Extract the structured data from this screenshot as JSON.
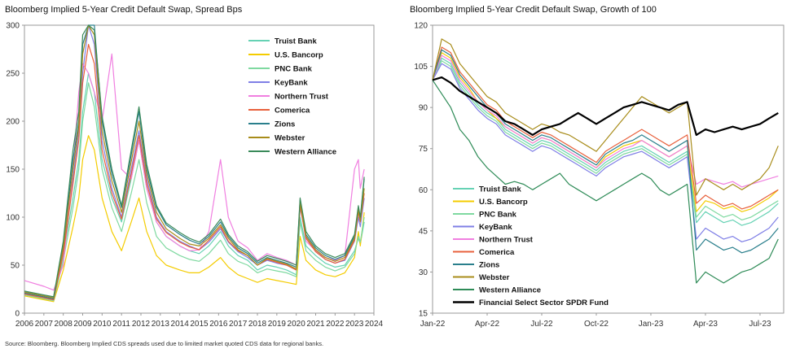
{
  "charts": {
    "left_title": "Bloomberg Implied 5-Year Credit Default Swap, Spread Bps",
    "right_title": "Bloomberg Implied 5-Year Credit Default Swap, Growth of 100"
  },
  "source": "Source: Bloomberg. Bloomberg Implied CDS spreads used due to limited market quoted CDS data for regional banks.",
  "chart_data": [
    {
      "type": "line",
      "title": "Bloomberg Implied 5-Year Credit Default Swap, Spread Bps",
      "xlabel": "",
      "ylabel": "",
      "xlim": [
        2006,
        2024
      ],
      "ylim": [
        0,
        300
      ],
      "x_ticks": [
        "2006",
        "2007",
        "2008",
        "2009",
        "2010",
        "2011",
        "2012",
        "2013",
        "2014",
        "2015",
        "2016",
        "2017",
        "2018",
        "2019",
        "2020",
        "2021",
        "2022",
        "2023",
        "2024"
      ],
      "y_ticks": [
        "0",
        "50",
        "100",
        "150",
        "200",
        "250",
        "300"
      ],
      "grid": false,
      "legend_position": "top-right",
      "x": [
        2006.0,
        2007.0,
        2007.5,
        2008.0,
        2008.5,
        2008.8,
        2009.0,
        2009.3,
        2009.6,
        2010.0,
        2010.5,
        2011.0,
        2011.5,
        2011.9,
        2012.3,
        2012.8,
        2013.3,
        2014.0,
        2014.5,
        2015.0,
        2015.5,
        2016.1,
        2016.5,
        2017.0,
        2017.5,
        2018.0,
        2018.5,
        2019.0,
        2019.5,
        2020.0,
        2020.2,
        2020.5,
        2021.0,
        2021.5,
        2022.0,
        2022.5,
        2023.0,
        2023.2,
        2023.3,
        2023.5
      ],
      "series": [
        {
          "name": "Truist Bank",
          "color": "#66d2b4",
          "values": [
            20,
            16,
            14,
            60,
            120,
            160,
            210,
            250,
            230,
            160,
            120,
            95,
            140,
            180,
            130,
            95,
            80,
            70,
            65,
            62,
            70,
            85,
            70,
            60,
            55,
            45,
            50,
            48,
            45,
            40,
            100,
            70,
            60,
            52,
            48,
            50,
            65,
            78,
            72,
            95
          ]
        },
        {
          "name": "U.S. Bancorp",
          "color": "#f4cc00",
          "values": [
            18,
            14,
            12,
            45,
            90,
            120,
            160,
            185,
            170,
            120,
            85,
            65,
            95,
            120,
            85,
            60,
            50,
            45,
            42,
            42,
            48,
            58,
            48,
            40,
            36,
            32,
            36,
            34,
            32,
            30,
            80,
            55,
            45,
            40,
            38,
            42,
            58,
            85,
            70,
            105
          ]
        },
        {
          "name": "PNC Bank",
          "color": "#7fd9a0",
          "values": [
            19,
            15,
            13,
            55,
            110,
            150,
            200,
            240,
            215,
            150,
            110,
            85,
            125,
            160,
            115,
            80,
            68,
            60,
            56,
            54,
            62,
            76,
            62,
            54,
            50,
            42,
            46,
            44,
            42,
            38,
            95,
            65,
            55,
            48,
            44,
            48,
            62,
            80,
            74,
            100
          ]
        },
        {
          "name": "KeyBank",
          "color": "#7f7fe6",
          "values": [
            20,
            16,
            14,
            65,
            140,
            190,
            250,
            300,
            280,
            180,
            130,
            100,
            150,
            190,
            140,
            100,
            85,
            75,
            70,
            66,
            74,
            88,
            74,
            64,
            58,
            50,
            55,
            52,
            50,
            45,
            110,
            80,
            65,
            56,
            52,
            55,
            75,
            100,
            90,
            120
          ]
        },
        {
          "name": "Northern Trust",
          "color": "#f07fe0",
          "values": [
            34,
            28,
            24,
            50,
            150,
            230,
            260,
            250,
            230,
            200,
            270,
            150,
            140,
            180,
            130,
            95,
            80,
            70,
            65,
            66,
            85,
            160,
            100,
            75,
            68,
            55,
            62,
            58,
            55,
            50,
            115,
            75,
            65,
            58,
            55,
            60,
            150,
            160,
            130,
            150
          ]
        },
        {
          "name": "Comerica",
          "color": "#e8603c",
          "values": [
            20,
            16,
            14,
            62,
            135,
            180,
            240,
            280,
            260,
            170,
            125,
            98,
            145,
            185,
            135,
            98,
            84,
            74,
            69,
            66,
            76,
            90,
            75,
            65,
            60,
            50,
            56,
            53,
            50,
            45,
            112,
            78,
            64,
            56,
            52,
            56,
            76,
            105,
            95,
            125
          ]
        },
        {
          "name": "Zions",
          "color": "#2a7f8c",
          "values": [
            21,
            17,
            15,
            70,
            160,
            200,
            280,
            310,
            300,
            200,
            145,
            110,
            165,
            210,
            150,
            110,
            92,
            82,
            76,
            72,
            80,
            95,
            80,
            68,
            62,
            52,
            58,
            55,
            52,
            48,
            118,
            82,
            68,
            60,
            56,
            60,
            80,
            110,
            98,
            140
          ]
        },
        {
          "name": "Webster",
          "color": "#a88c1a",
          "values": [
            22,
            18,
            16,
            68,
            150,
            195,
            270,
            305,
            290,
            190,
            138,
            105,
            158,
            200,
            145,
            105,
            88,
            78,
            72,
            70,
            78,
            92,
            78,
            66,
            60,
            50,
            57,
            54,
            51,
            46,
            115,
            80,
            66,
            58,
            54,
            58,
            78,
            108,
            96,
            130
          ]
        },
        {
          "name": "Western Alliance",
          "color": "#3a8a5a",
          "values": [
            23,
            19,
            17,
            75,
            170,
            210,
            290,
            300,
            295,
            205,
            150,
            112,
            170,
            215,
            155,
            112,
            94,
            84,
            78,
            74,
            82,
            98,
            82,
            70,
            64,
            54,
            60,
            57,
            54,
            50,
            120,
            85,
            70,
            62,
            58,
            62,
            82,
            112,
            100,
            142
          ]
        }
      ]
    },
    {
      "type": "line",
      "title": "Bloomberg Implied 5-Year Credit Default Swap, Growth of 100",
      "xlabel": "",
      "ylabel": "",
      "xlim": [
        0,
        19.3
      ],
      "ylim": [
        15,
        120
      ],
      "x_ticks": [
        "Jan-22",
        "Apr-22",
        "Jul-22",
        "Oct-22",
        "Jan-23",
        "Apr-23",
        "Jul-23"
      ],
      "y_ticks": [
        "15",
        "30",
        "45",
        "60",
        "75",
        "90",
        "105",
        "120"
      ],
      "grid": false,
      "legend_position": "bottom-left",
      "x": [
        0,
        0.5,
        1.0,
        1.5,
        2.0,
        2.5,
        3.0,
        3.5,
        4.0,
        4.5,
        5.0,
        5.5,
        6.0,
        6.5,
        7.0,
        7.5,
        8.0,
        8.5,
        9.0,
        9.5,
        10.0,
        10.5,
        11.0,
        11.5,
        12.0,
        12.5,
        13.0,
        13.5,
        14.0,
        14.5,
        15.0,
        15.5,
        16.0,
        16.5,
        17.0,
        17.5,
        18.0,
        18.5,
        19.0
      ],
      "series": [
        {
          "name": "Truist Bank",
          "color": "#66d2b4",
          "values": [
            100,
            108,
            106,
            99,
            95,
            91,
            88,
            86,
            82,
            80,
            78,
            76,
            78,
            77,
            75,
            73,
            71,
            69,
            67,
            70,
            72,
            74,
            75,
            76,
            74,
            72,
            70,
            72,
            74,
            48,
            52,
            50,
            48,
            49,
            47,
            48,
            50,
            52,
            55
          ]
        },
        {
          "name": "U.S. Bancorp",
          "color": "#f4cc00",
          "values": [
            100,
            110,
            108,
            101,
            97,
            92,
            89,
            86,
            83,
            81,
            79,
            77,
            79,
            78,
            76,
            74,
            72,
            70,
            68,
            72,
            74,
            76,
            77,
            78,
            76,
            74,
            72,
            74,
            76,
            52,
            56,
            55,
            53,
            54,
            52,
            53,
            55,
            57,
            60
          ]
        },
        {
          "name": "PNC Bank",
          "color": "#7fd9a0",
          "values": [
            100,
            107,
            105,
            98,
            94,
            90,
            87,
            85,
            81,
            79,
            77,
            75,
            77,
            76,
            74,
            72,
            70,
            68,
            66,
            69,
            71,
            73,
            74,
            75,
            73,
            71,
            69,
            71,
            73,
            50,
            54,
            52,
            50,
            51,
            49,
            50,
            52,
            54,
            56
          ]
        },
        {
          "name": "KeyBank",
          "color": "#7f7fe6",
          "values": [
            100,
            106,
            104,
            97,
            93,
            89,
            86,
            84,
            80,
            78,
            76,
            74,
            76,
            75,
            73,
            71,
            69,
            67,
            65,
            68,
            70,
            72,
            73,
            74,
            72,
            70,
            68,
            70,
            72,
            42,
            46,
            44,
            42,
            43,
            41,
            42,
            44,
            46,
            50
          ]
        },
        {
          "name": "Northern Trust",
          "color": "#f07fe0",
          "values": [
            100,
            109,
            107,
            100,
            96,
            92,
            89,
            87,
            83,
            81,
            79,
            77,
            79,
            78,
            76,
            74,
            72,
            70,
            68,
            71,
            73,
            75,
            76,
            78,
            76,
            74,
            72,
            74,
            76,
            62,
            64,
            63,
            62,
            63,
            61,
            62,
            63,
            64,
            65
          ]
        },
        {
          "name": "Comerica",
          "color": "#e8603c",
          "values": [
            100,
            112,
            110,
            103,
            99,
            95,
            91,
            89,
            85,
            83,
            81,
            79,
            81,
            80,
            78,
            76,
            74,
            72,
            70,
            74,
            76,
            78,
            80,
            82,
            80,
            78,
            76,
            78,
            80,
            55,
            58,
            56,
            54,
            55,
            53,
            54,
            56,
            58,
            60
          ]
        },
        {
          "name": "Zions",
          "color": "#2a7f8c",
          "values": [
            100,
            111,
            109,
            102,
            98,
            94,
            90,
            88,
            84,
            82,
            80,
            78,
            80,
            79,
            77,
            75,
            73,
            71,
            69,
            73,
            75,
            77,
            78,
            80,
            78,
            76,
            74,
            76,
            78,
            38,
            42,
            40,
            38,
            39,
            37,
            38,
            40,
            42,
            46
          ]
        },
        {
          "name": "Webster",
          "color": "#a88c1a",
          "values": [
            100,
            115,
            113,
            106,
            102,
            98,
            94,
            92,
            88,
            86,
            84,
            82,
            84,
            83,
            81,
            80,
            78,
            76,
            74,
            78,
            82,
            86,
            90,
            94,
            92,
            90,
            88,
            90,
            92,
            58,
            64,
            62,
            60,
            62,
            60,
            62,
            64,
            68,
            76
          ]
        },
        {
          "name": "Western Alliance",
          "color": "#2e8b57",
          "values": [
            100,
            95,
            90,
            82,
            78,
            72,
            68,
            65,
            62,
            63,
            62,
            60,
            62,
            64,
            66,
            62,
            60,
            58,
            56,
            58,
            60,
            62,
            64,
            66,
            64,
            60,
            58,
            60,
            62,
            26,
            30,
            28,
            26,
            28,
            30,
            31,
            33,
            35,
            42
          ]
        },
        {
          "name": "Financial Select Sector SPDR Fund",
          "color": "#000000",
          "values": [
            100,
            101,
            99,
            96,
            94,
            92,
            90,
            88,
            85,
            84,
            82,
            80,
            82,
            83,
            84,
            86,
            88,
            86,
            84,
            86,
            88,
            90,
            91,
            92,
            91,
            90,
            89,
            91,
            92,
            80,
            82,
            81,
            82,
            83,
            82,
            83,
            84,
            86,
            88
          ]
        }
      ]
    }
  ]
}
